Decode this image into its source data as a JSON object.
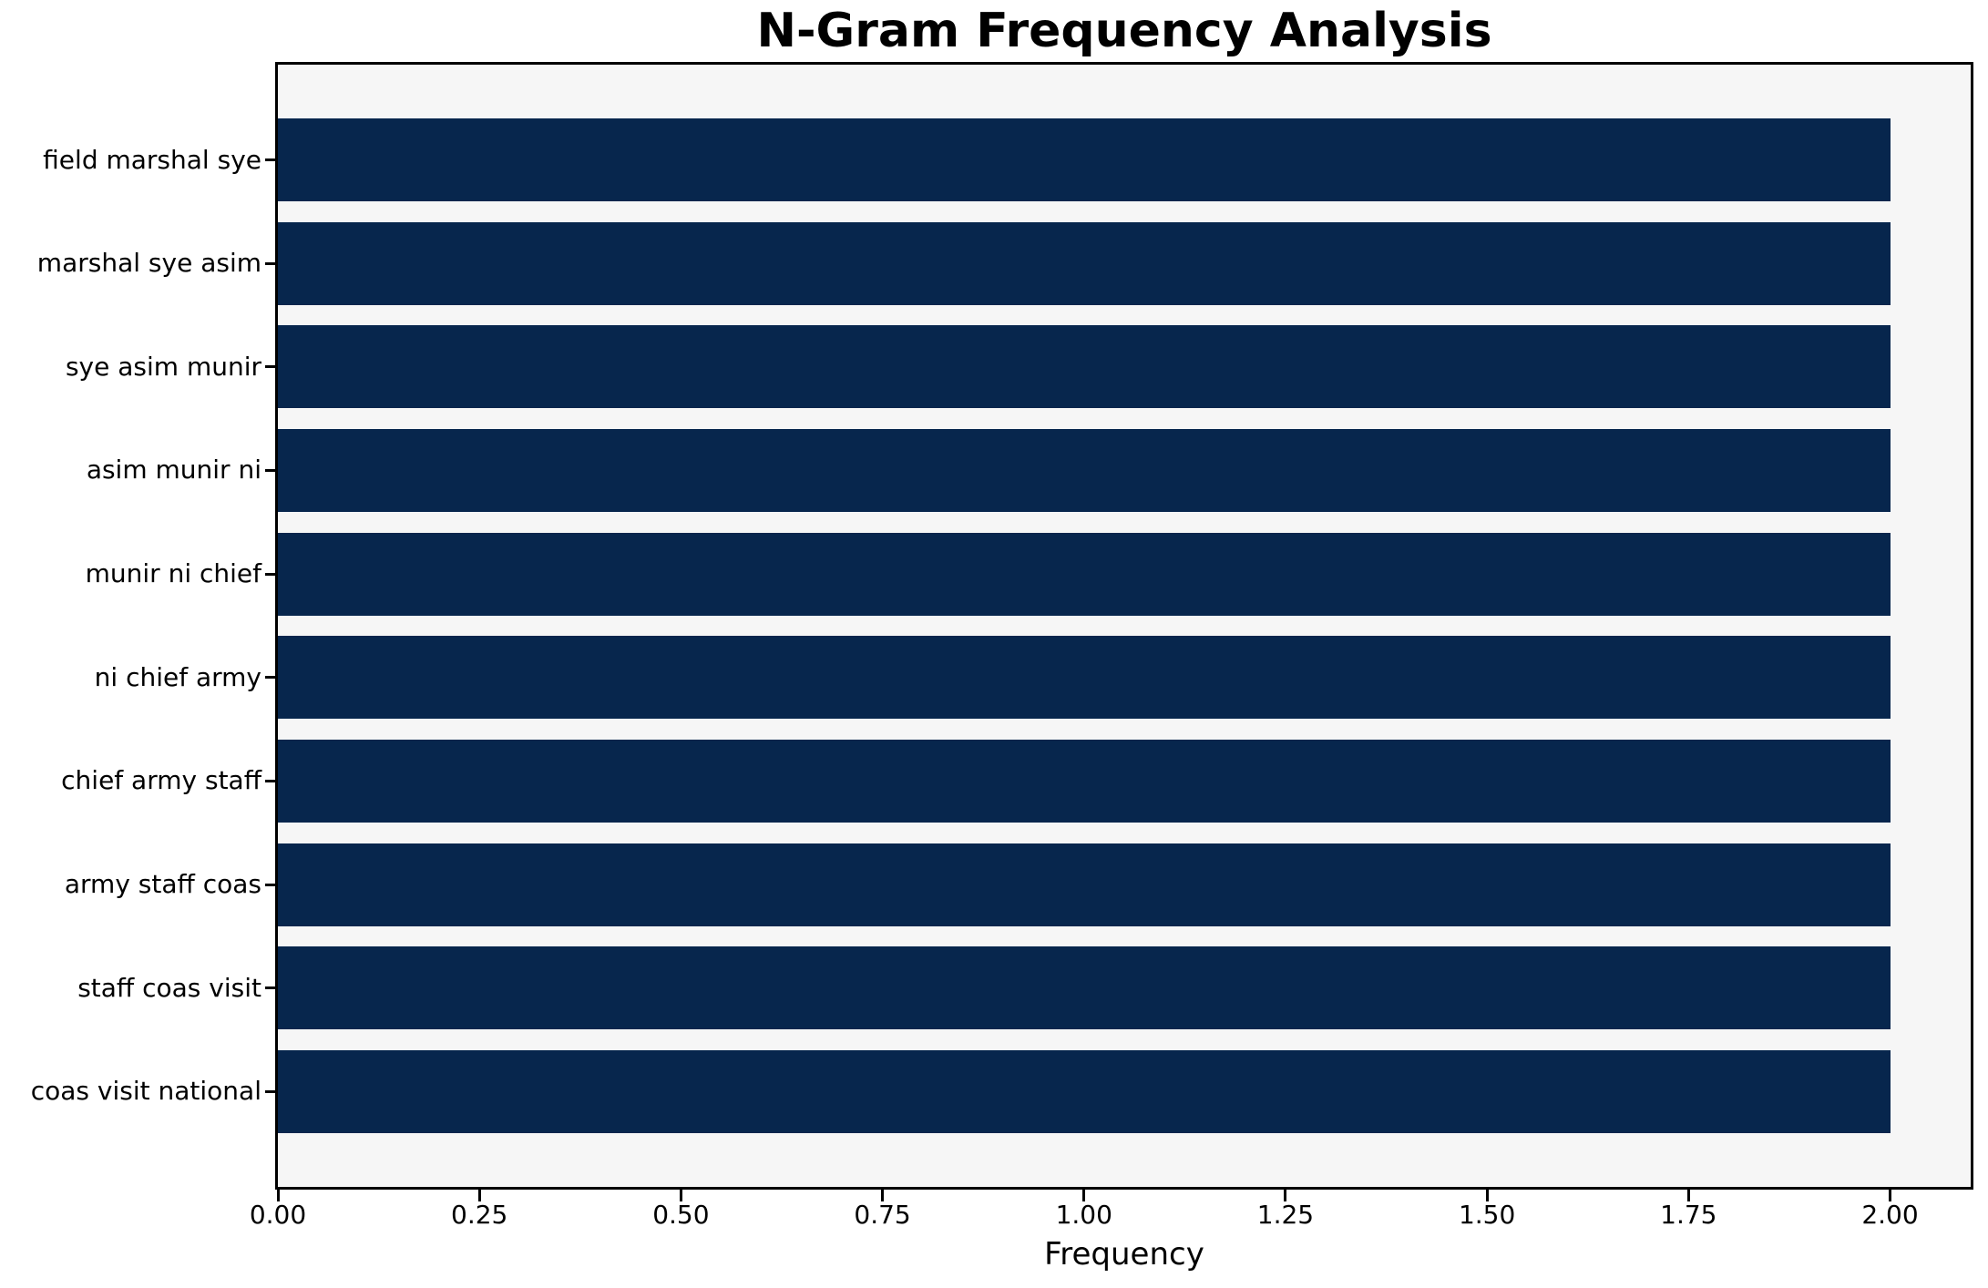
{
  "chart_data": {
    "type": "bar",
    "orientation": "horizontal",
    "title": "N-Gram Frequency Analysis",
    "xlabel": "Frequency",
    "ylabel": "",
    "categories": [
      "field marshal sye",
      "marshal sye asim",
      "sye asim munir",
      "asim munir ni",
      "munir ni chief",
      "ni chief army",
      "chief army staff",
      "army staff coas",
      "staff coas visit",
      "coas visit national"
    ],
    "values": [
      2,
      2,
      2,
      2,
      2,
      2,
      2,
      2,
      2,
      2
    ],
    "xlim": [
      0,
      2.1
    ],
    "xticks": [
      "0.00",
      "0.25",
      "0.50",
      "0.75",
      "1.00",
      "1.25",
      "1.50",
      "1.75",
      "2.00"
    ],
    "grid": false,
    "legend_position": "none",
    "colors": {
      "bar": "#07264d",
      "plot_background": "#f6f6f6",
      "figure_background": "#ffffff",
      "axis": "#000000",
      "text": "#000000"
    }
  }
}
